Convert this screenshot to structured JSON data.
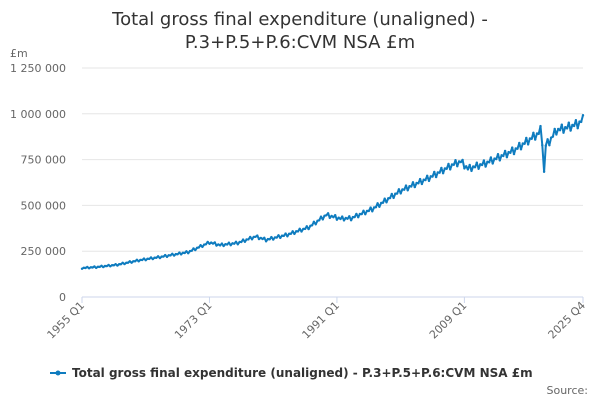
{
  "chart_data": {
    "type": "line",
    "title_line1": "Total gross final expenditure (unaligned) -",
    "title_line2": "P.3+P.5+P.6:CVM NSA £m",
    "unit_label": "£m",
    "ylim": [
      0,
      1250000
    ],
    "y_ticks": [
      {
        "value": 0,
        "label": "0"
      },
      {
        "value": 250000,
        "label": "250 000"
      },
      {
        "value": 500000,
        "label": "500 000"
      },
      {
        "value": 750000,
        "label": "750 000"
      },
      {
        "value": 1000000,
        "label": "1 000 000"
      },
      {
        "value": 1250000,
        "label": "1 250 000"
      }
    ],
    "x_ticks": [
      {
        "year": 1955.0,
        "label": "1955 Q1"
      },
      {
        "year": 1973.0,
        "label": "1973 Q1"
      },
      {
        "year": 1991.0,
        "label": "1991 Q1"
      },
      {
        "year": 2009.0,
        "label": "2009 Q1"
      },
      {
        "year": 2025.75,
        "label": "2025 Q4"
      }
    ],
    "xlim": [
      1955.0,
      2025.75
    ],
    "grid": true,
    "legend_position": "bottom",
    "series": [
      {
        "name": "Total gross final expenditure (unaligned) - P.3+P.5+P.6:CVM NSA £m",
        "color": "#0f7cbf",
        "seasonal_amplitude": 0.025,
        "anchors": [
          [
            1955.0,
            158000
          ],
          [
            1957.0,
            163000
          ],
          [
            1960.0,
            176000
          ],
          [
            1963.0,
            200000
          ],
          [
            1966.0,
            218000
          ],
          [
            1970.0,
            245000
          ],
          [
            1973.0,
            298000
          ],
          [
            1974.5,
            283000
          ],
          [
            1977.0,
            295000
          ],
          [
            1979.5,
            330000
          ],
          [
            1981.0,
            312000
          ],
          [
            1984.0,
            340000
          ],
          [
            1987.0,
            380000
          ],
          [
            1989.5,
            448000
          ],
          [
            1991.5,
            428000
          ],
          [
            1993.0,
            430000
          ],
          [
            1996.0,
            480000
          ],
          [
            2000.0,
            580000
          ],
          [
            2004.0,
            650000
          ],
          [
            2007.5,
            725000
          ],
          [
            2008.5,
            740000
          ],
          [
            2009.5,
            700000
          ],
          [
            2012.0,
            730000
          ],
          [
            2016.0,
            800000
          ],
          [
            2019.5,
            895000
          ],
          [
            2019.75,
            910000
          ],
          [
            2020.0,
            850000
          ],
          [
            2020.25,
            680000
          ],
          [
            2020.5,
            830000
          ],
          [
            2021.0,
            850000
          ],
          [
            2022.0,
            910000
          ],
          [
            2023.5,
            925000
          ],
          [
            2025.0,
            945000
          ],
          [
            2025.75,
            968000
          ]
        ]
      }
    ]
  },
  "footer": {
    "source_label": "Source:"
  }
}
